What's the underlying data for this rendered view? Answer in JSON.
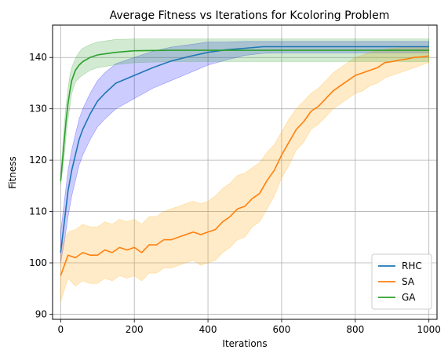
{
  "chart_data": {
    "type": "line",
    "title": "Average Fitness vs Iterations for Kcoloring Problem",
    "xlabel": "Iterations",
    "ylabel": "Fitness",
    "xlim": [
      -22,
      1022
    ],
    "ylim": [
      89,
      146.3
    ],
    "xticks": [
      0,
      200,
      400,
      600,
      800,
      1000
    ],
    "yticks": [
      90,
      100,
      110,
      120,
      130,
      140
    ],
    "grid": true,
    "legend_position": "lower-right",
    "series": [
      {
        "name": "RHC",
        "color": "#1f77b4",
        "band_color": "#0000ff",
        "band_opacity": 0.2,
        "x": [
          0,
          10,
          20,
          30,
          40,
          50,
          60,
          80,
          100,
          120,
          150,
          200,
          250,
          300,
          350,
          400,
          450,
          500,
          550,
          600,
          700,
          800,
          900,
          1000
        ],
        "mean": [
          102,
          108,
          114,
          118,
          121,
          124,
          126,
          129,
          131.5,
          133,
          135,
          136.5,
          138,
          139.3,
          140.2,
          141,
          141.5,
          141.8,
          142.1,
          142.1,
          142.1,
          142.1,
          142.1,
          142.1
        ],
        "upper": [
          106,
          112,
          118,
          122,
          125,
          128,
          130,
          133,
          135.5,
          137,
          138.8,
          140,
          141.2,
          142,
          142.5,
          143,
          143,
          143.1,
          143.1,
          143.1,
          143.1,
          143.1,
          143.1,
          143.1
        ],
        "lower": [
          100,
          104,
          109,
          113,
          116,
          119,
          121,
          124,
          126.5,
          128,
          130,
          132,
          134,
          135.5,
          137,
          138.5,
          139.5,
          140.4,
          140.8,
          140.9,
          140.9,
          140.9,
          140.9,
          140.9
        ]
      },
      {
        "name": "SA",
        "color": "#ff7f0e",
        "band_color": "#ffa500",
        "band_opacity": 0.22,
        "x": [
          0,
          20,
          40,
          60,
          80,
          100,
          120,
          140,
          160,
          180,
          200,
          220,
          240,
          260,
          280,
          300,
          320,
          340,
          360,
          380,
          400,
          420,
          440,
          460,
          480,
          500,
          520,
          540,
          560,
          580,
          600,
          620,
          640,
          660,
          680,
          700,
          720,
          740,
          760,
          780,
          800,
          820,
          840,
          860,
          880,
          900,
          920,
          940,
          960,
          980,
          1000
        ],
        "mean": [
          97.5,
          101.5,
          101,
          102,
          101.5,
          101.5,
          102.5,
          102,
          103,
          102.5,
          103,
          102,
          103.5,
          103.5,
          104.5,
          104.5,
          105,
          105.5,
          106,
          105.5,
          106,
          106.5,
          108,
          109,
          110.5,
          111,
          112.5,
          113.5,
          116,
          118,
          121,
          123.5,
          126,
          127.5,
          129.5,
          130.5,
          132,
          133.5,
          134.5,
          135.5,
          136.5,
          137,
          137.5,
          138,
          139,
          139.2,
          139.5,
          139.7,
          140,
          140.1,
          140.3
        ],
        "upper": [
          103,
          106,
          106.5,
          107.5,
          107,
          107,
          108,
          107.5,
          108.5,
          108,
          108.5,
          107.5,
          109,
          109,
          110,
          110.5,
          111,
          111.5,
          112,
          111.5,
          112,
          113,
          114.5,
          115.5,
          117,
          117.5,
          118.5,
          119.5,
          121.5,
          123,
          125.5,
          128,
          130,
          131.5,
          133,
          134,
          135.5,
          137,
          138,
          139,
          140,
          140.5,
          141,
          141.3,
          141.6,
          141.8,
          141.9,
          142,
          142,
          142,
          142
        ],
        "lower": [
          92.5,
          97,
          95.5,
          96.5,
          96,
          96,
          97,
          96.5,
          97.5,
          97,
          97.5,
          96.5,
          98,
          98,
          99,
          99,
          99.5,
          100,
          100.5,
          99.5,
          100,
          100.5,
          102,
          103,
          104.5,
          105,
          107,
          108,
          110.5,
          113,
          116.5,
          119,
          122,
          123.5,
          126,
          127,
          128.5,
          130,
          131,
          132,
          133,
          133.5,
          134.5,
          135,
          136,
          136.5,
          137,
          137.5,
          138,
          138.5,
          139
        ]
      },
      {
        "name": "GA",
        "color": "#2ca02c",
        "band_color": "#2ca02c",
        "band_opacity": 0.22,
        "x": [
          0,
          5,
          10,
          15,
          20,
          25,
          30,
          40,
          50,
          60,
          80,
          100,
          150,
          200,
          300,
          400,
          500,
          600,
          700,
          800,
          900,
          1000
        ],
        "mean": [
          116,
          120,
          124,
          128,
          131,
          133.5,
          135.5,
          137.5,
          138.5,
          139.2,
          140,
          140.5,
          141,
          141.3,
          141.4,
          141.4,
          141.4,
          141.4,
          141.4,
          141.4,
          141.4,
          141.4
        ],
        "upper": [
          117,
          122,
          127,
          131,
          134,
          136.5,
          138,
          139.8,
          141,
          141.8,
          142.5,
          143,
          143.5,
          143.6,
          143.6,
          143.6,
          143.6,
          143.6,
          143.6,
          143.6,
          143.6,
          143.6
        ],
        "lower": [
          115,
          118,
          121,
          125,
          128,
          130.5,
          133,
          135.2,
          136,
          136.6,
          137.5,
          138,
          138.6,
          139,
          139.2,
          139.2,
          139.2,
          139.2,
          139.2,
          139.2,
          139.2,
          139.2
        ]
      }
    ]
  }
}
